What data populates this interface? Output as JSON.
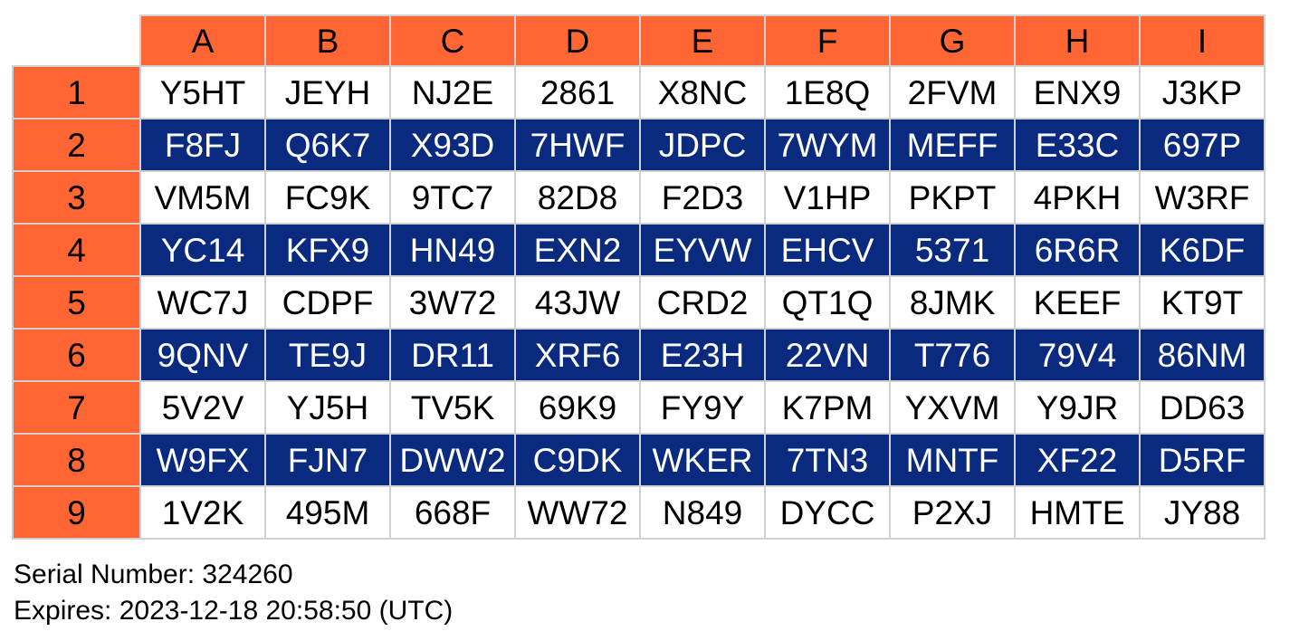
{
  "grid": {
    "columns": [
      "A",
      "B",
      "C",
      "D",
      "E",
      "F",
      "G",
      "H",
      "I"
    ],
    "rows": [
      {
        "label": "1",
        "cells": [
          "Y5HT",
          "JEYH",
          "NJ2E",
          "2861",
          "X8NC",
          "1E8Q",
          "2FVM",
          "ENX9",
          "J3KP"
        ]
      },
      {
        "label": "2",
        "cells": [
          "F8FJ",
          "Q6K7",
          "X93D",
          "7HWF",
          "JDPC",
          "7WYM",
          "MEFF",
          "E33C",
          "697P"
        ]
      },
      {
        "label": "3",
        "cells": [
          "VM5M",
          "FC9K",
          "9TC7",
          "82D8",
          "F2D3",
          "V1HP",
          "PKPT",
          "4PKH",
          "W3RF"
        ]
      },
      {
        "label": "4",
        "cells": [
          "YC14",
          "KFX9",
          "HN49",
          "EXN2",
          "EYVW",
          "EHCV",
          "5371",
          "6R6R",
          "K6DF"
        ]
      },
      {
        "label": "5",
        "cells": [
          "WC7J",
          "CDPF",
          "3W72",
          "43JW",
          "CRD2",
          "QT1Q",
          "8JMK",
          "KEEF",
          "KT9T"
        ]
      },
      {
        "label": "6",
        "cells": [
          "9QNV",
          "TE9J",
          "DR11",
          "XRF6",
          "E23H",
          "22VN",
          "T776",
          "79V4",
          "86NM"
        ]
      },
      {
        "label": "7",
        "cells": [
          "5V2V",
          "YJ5H",
          "TV5K",
          "69K9",
          "FY9Y",
          "K7PM",
          "YXVM",
          "Y9JR",
          "DD63"
        ]
      },
      {
        "label": "8",
        "cells": [
          "W9FX",
          "FJN7",
          "DWW2",
          "C9DK",
          "WKER",
          "7TN3",
          "MNTF",
          "XF22",
          "D5RF"
        ]
      },
      {
        "label": "9",
        "cells": [
          "1V2K",
          "495M",
          "668F",
          "WW72",
          "N849",
          "DYCC",
          "P2XJ",
          "HMTE",
          "JY88"
        ]
      }
    ]
  },
  "footer": {
    "serial_number": "Serial Number: 324260",
    "expires": "Expires: 2023-12-18 20:58:50 (UTC)"
  },
  "colors": {
    "header_orange": "#ff6633",
    "row_blue": "#0a2a80",
    "row_white": "#ffffff",
    "grid_border": "#d0d0d0"
  }
}
